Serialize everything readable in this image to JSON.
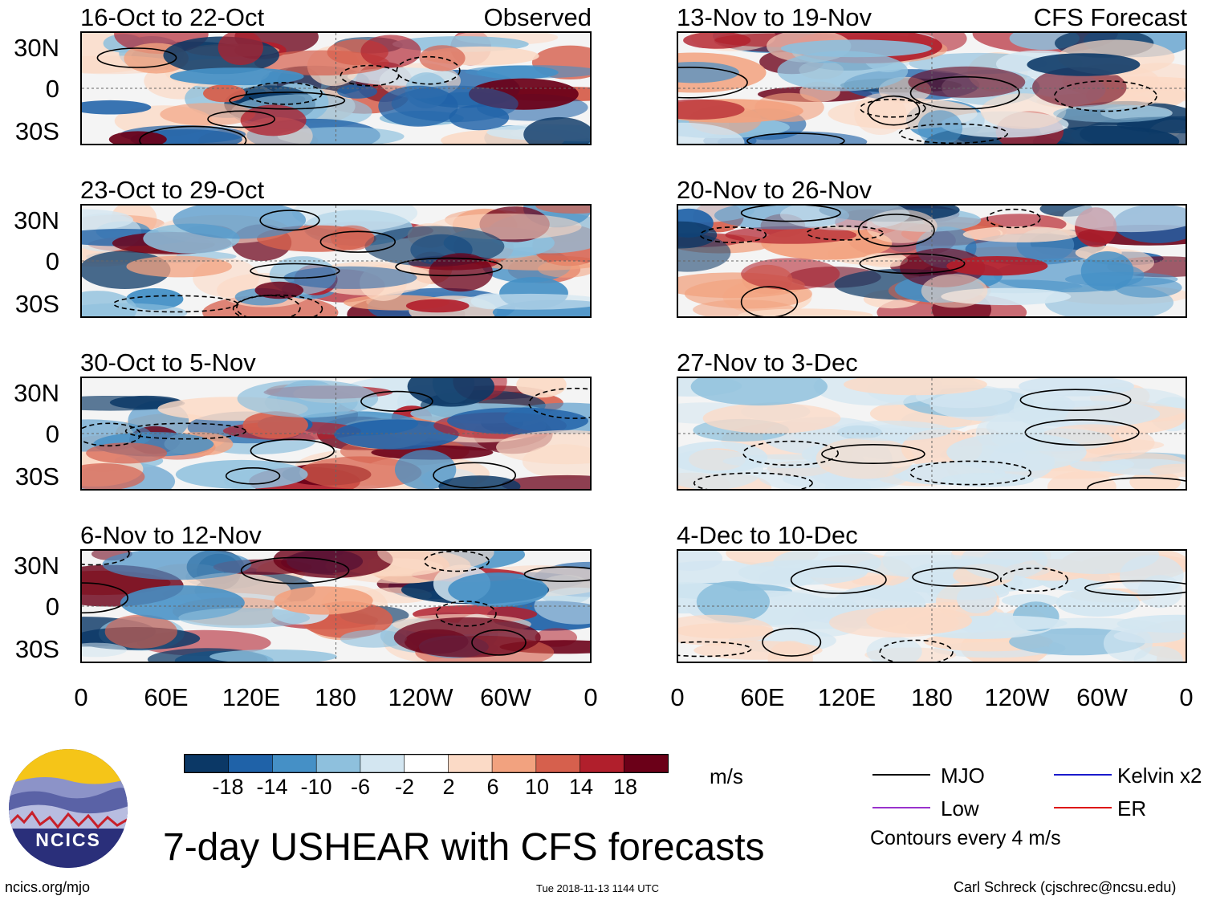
{
  "panels_observed": [
    {
      "title": "16-Oct to 22-Oct",
      "tag": "Observed"
    },
    {
      "title": "23-Oct to 29-Oct",
      "tag": ""
    },
    {
      "title": "30-Oct to 5-Nov",
      "tag": ""
    },
    {
      "title": "6-Nov to 12-Nov",
      "tag": ""
    }
  ],
  "panels_forecast": [
    {
      "title": "13-Nov to 19-Nov",
      "tag": "CFS Forecast"
    },
    {
      "title": "20-Nov to 26-Nov",
      "tag": ""
    },
    {
      "title": "27-Nov to 3-Dec",
      "tag": ""
    },
    {
      "title": "4-Dec to 10-Dec",
      "tag": ""
    }
  ],
  "lat_labels": [
    "30N",
    "0",
    "30S"
  ],
  "lon_labels": [
    "0",
    "60E",
    "120E",
    "180",
    "120W",
    "60W",
    "0"
  ],
  "colorbar": {
    "labels": [
      "-18",
      "-14",
      "-10",
      "-6",
      "-2",
      "2",
      "6",
      "10",
      "14",
      "18"
    ],
    "colors": [
      "#0b3866",
      "#1f62a8",
      "#4590c6",
      "#8ec0dd",
      "#d3e6f1",
      "#ffffff",
      "#fbdac6",
      "#f2a27f",
      "#d6604d",
      "#b11f2c",
      "#6b0018"
    ],
    "units": "m/s"
  },
  "legend": {
    "mjo": "MJO",
    "kelvin": "Kelvin x2",
    "low": "Low",
    "er": "ER",
    "contours": "Contours every 4 m/s",
    "mjo_color": "#000000",
    "kelvin_color": "#1a1acc",
    "low_color": "#9932cc",
    "er_color": "#dd1111"
  },
  "main_title": "7-day USHEAR with CFS forecasts",
  "logo_text": "NCICS",
  "footer": {
    "website": "ncics.org/mjo",
    "timestamp": "Tue 2018-11-13 1144 UTC",
    "author": "Carl Schreck (cjschrec@ncsu.edu)"
  }
}
